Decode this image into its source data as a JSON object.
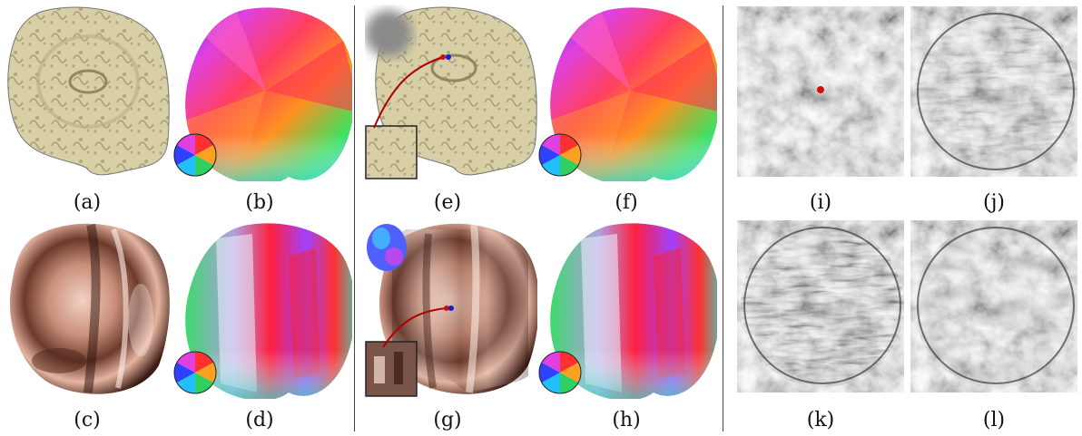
{
  "figure": {
    "captions": {
      "a": "(a)",
      "b": "(b)",
      "c": "(c)",
      "d": "(d)",
      "e": "(e)",
      "f": "(f)",
      "g": "(g)",
      "h": "(h)",
      "i": "(i)",
      "j": "(j)",
      "k": "(k)",
      "l": "(l)"
    }
  },
  "colors": {
    "fabric": "#d8cfa6",
    "fabric_pattern": "#a8a078",
    "copper": "#c98f7a",
    "marker_red": "#d01010",
    "marker_blue": "#1020d0",
    "noise_gray": "#8a8a8a"
  }
}
